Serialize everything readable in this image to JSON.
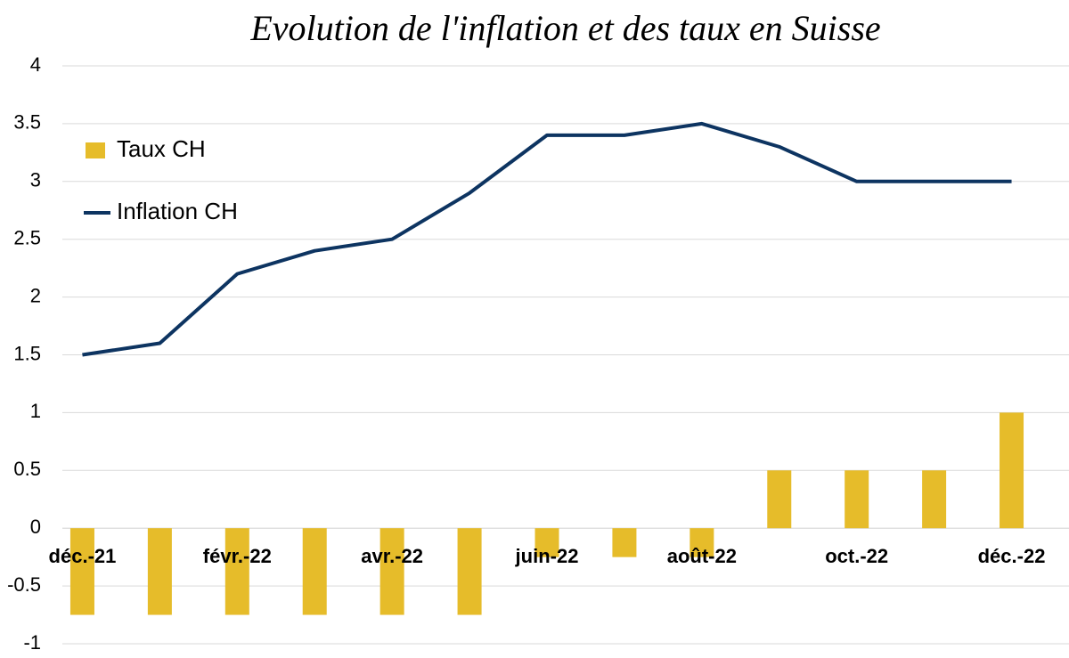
{
  "chart_data": {
    "type": "combo",
    "title": "Evolution de l'inflation et des taux en Suisse",
    "categories": [
      "déc.-21",
      null,
      "févr.-22",
      null,
      "avr.-22",
      null,
      "juin-22",
      null,
      "août-22",
      null,
      "oct.-22",
      null,
      "déc.-22"
    ],
    "series": [
      {
        "name": "Taux CH",
        "type": "bar",
        "color": "#e6bc2a",
        "values": [
          -0.75,
          -0.75,
          -0.75,
          -0.75,
          -0.75,
          -0.75,
          -0.25,
          -0.25,
          -0.25,
          0.5,
          0.5,
          0.5,
          1
        ]
      },
      {
        "name": "Inflation CH",
        "type": "line",
        "color": "#0d3461",
        "values": [
          1.5,
          1.6,
          2.2,
          2.4,
          2.5,
          2.9,
          3.4,
          3.4,
          3.5,
          3.3,
          3,
          3,
          3
        ]
      }
    ],
    "ylim": [
      -1,
      4
    ],
    "yticks": [
      -1,
      -0.5,
      0,
      0.5,
      1,
      1.5,
      2,
      2.5,
      3,
      3.5,
      4
    ],
    "grid": true,
    "legend": "top-left"
  }
}
